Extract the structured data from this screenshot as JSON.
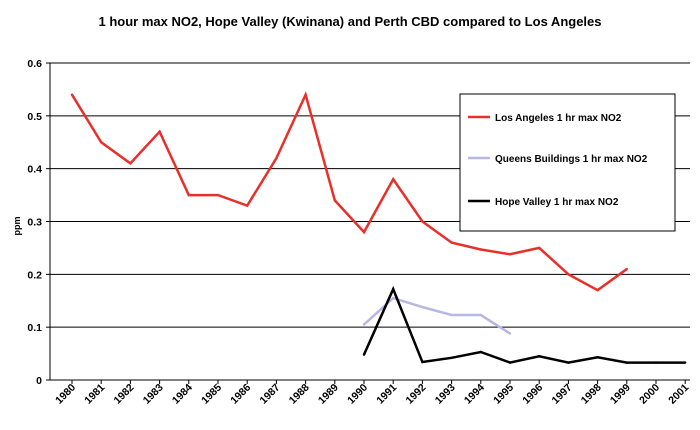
{
  "chart_data": {
    "type": "line",
    "title": "1 hour max NO2, Hope Valley (Kwinana) and Perth CBD  compared to Los Angeles",
    "xlabel": "",
    "ylabel": "ppm",
    "ylim": [
      0,
      0.6
    ],
    "yticks": [
      "0",
      "0.1",
      "0.2",
      "0.3",
      "0.4",
      "0.5",
      "0.6"
    ],
    "categories": [
      "1980",
      "1981",
      "1982",
      "1983",
      "1984",
      "1985",
      "1986",
      "1987",
      "1988",
      "1989",
      "1990",
      "1991",
      "1992",
      "1993",
      "1994",
      "1995",
      "1996",
      "1997",
      "1998",
      "1999",
      "2000",
      "2001"
    ],
    "grid": true,
    "legend_position": "right",
    "series": [
      {
        "name": "Los Angeles 1 hr max NO2",
        "color": "#e8302a",
        "values": [
          0.54,
          0.45,
          0.41,
          0.47,
          0.35,
          0.35,
          0.33,
          0.42,
          0.54,
          0.34,
          0.28,
          0.38,
          0.3,
          0.26,
          0.247,
          0.238,
          0.25,
          0.2,
          0.17,
          0.21,
          null,
          null
        ]
      },
      {
        "name": "Queens Buildings 1 hr max NO2",
        "color": "#b7b7e3",
        "values": [
          null,
          null,
          null,
          null,
          null,
          null,
          null,
          null,
          null,
          null,
          0.105,
          0.155,
          0.138,
          0.123,
          0.123,
          0.088,
          null,
          null,
          null,
          null,
          null,
          null
        ]
      },
      {
        "name": "Hope Valley 1 hr max NO2",
        "color": "#000000",
        "values": [
          null,
          null,
          null,
          null,
          null,
          null,
          null,
          null,
          null,
          null,
          0.048,
          0.172,
          0.034,
          0.042,
          0.053,
          0.033,
          0.045,
          0.033,
          0.043,
          0.033,
          0.033,
          0.033
        ]
      }
    ]
  }
}
